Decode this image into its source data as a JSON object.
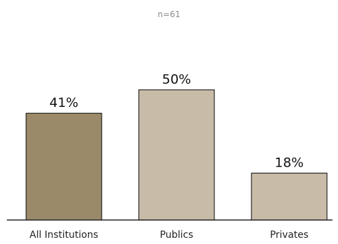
{
  "subtitle": "n=61",
  "chart_data": {
    "type": "bar",
    "categories": [
      "All Institutions",
      "Publics",
      "Privates"
    ],
    "values": [
      41,
      50,
      18
    ],
    "data_labels": [
      "41%",
      "50%",
      "18%"
    ],
    "colors": [
      "#9b8a6a",
      "#c8bba8",
      "#c8bba8"
    ],
    "ylim": [
      0,
      60
    ],
    "grid": false,
    "legend": "none",
    "xlabel": "",
    "ylabel": ""
  }
}
